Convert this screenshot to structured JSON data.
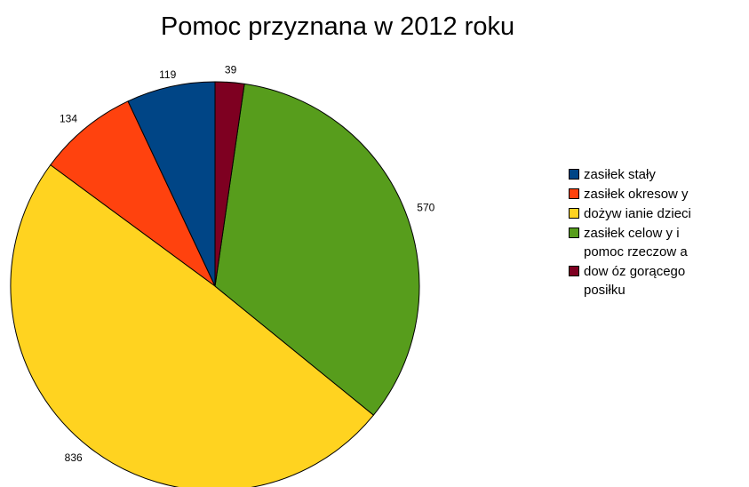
{
  "chart_data": {
    "type": "pie",
    "title": "Pomoc przyznana w 2012 roku",
    "categories": [
      "zasiłek stały",
      "zasiłek okresow y",
      "dożyw ianie dzieci",
      "zasiłek celow y i\npomoc rzeczow a",
      "dow óz gorącego\nposiłku"
    ],
    "values": [
      119,
      134,
      836,
      570,
      39
    ],
    "value_labels": [
      "119",
      "134",
      "836",
      "570",
      "39"
    ],
    "colors": [
      "#004586",
      "#ff420e",
      "#ffd320",
      "#579d1c",
      "#7e0021"
    ],
    "legend_position": "right",
    "start_angle": "top",
    "direction": "counterclockwise"
  }
}
